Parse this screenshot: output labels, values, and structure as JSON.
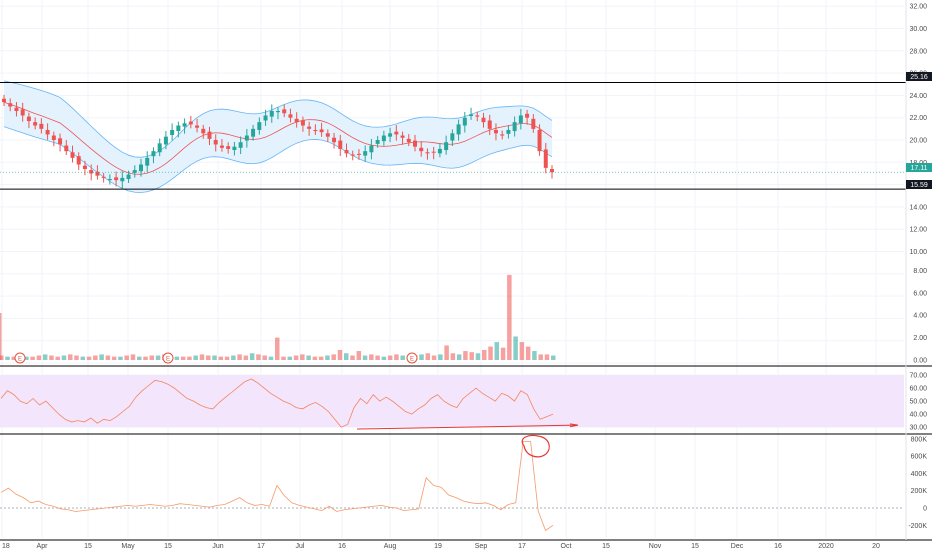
{
  "colors": {
    "up": "#26a69a",
    "down": "#ef5350",
    "band": "#64b5f6",
    "band_fill": "#e3f2fd",
    "rsi_line": "#f5845e",
    "rsi_bg": "#f3e5fb",
    "indicator_line": "#f59a6a",
    "annotation": "#e53935",
    "grid": "#f0f3fa",
    "axis_text": "#4a4a4a"
  },
  "price_tags": {
    "upper": "25.16",
    "last": "17.11",
    "lower": "15.59"
  },
  "chart_data": [
    {
      "type": "candlestick",
      "title": "",
      "x_axis_labels": [
        "18",
        "Apr",
        "15",
        "May",
        "15",
        "Jun",
        "17",
        "Jul",
        "16",
        "Aug",
        "19",
        "Sep",
        "17",
        "Oct",
        "15",
        "Nov",
        "15",
        "Dec",
        "16",
        "2020",
        "20"
      ],
      "y_ticks": [
        "32.00",
        "30.00",
        "28.00",
        "26.00",
        "24.00",
        "22.00",
        "20.00",
        "18.00",
        "16.00",
        "14.00",
        "12.00",
        "10.00",
        "8.00",
        "6.00",
        "4.00",
        "2.00",
        "0.00"
      ],
      "ylim": [
        -0.5,
        32.5
      ],
      "horizontal_lines": [
        25.16,
        15.59
      ],
      "bollinger_bands": true,
      "close": [
        23.4,
        23.0,
        22.6,
        22.2,
        21.7,
        21.3,
        21.0,
        20.5,
        20.0,
        19.6,
        19.0,
        18.4,
        17.8,
        17.4,
        17.0,
        16.8,
        16.6,
        16.5,
        16.4,
        16.6,
        16.9,
        17.3,
        17.8,
        18.4,
        19.0,
        19.7,
        20.3,
        20.9,
        21.3,
        21.5,
        21.4,
        21.1,
        20.6,
        20.1,
        19.6,
        19.3,
        19.2,
        19.4,
        19.8,
        20.4,
        21.0,
        21.6,
        22.2,
        22.6,
        22.6,
        22.4,
        22.0,
        21.6,
        21.3,
        21.0,
        20.8,
        20.7,
        20.3,
        19.8,
        19.2,
        18.8,
        18.6,
        18.7,
        19.0,
        19.5,
        20.0,
        20.4,
        20.6,
        20.5,
        20.2,
        19.8,
        19.4,
        19.0,
        18.8,
        18.9,
        19.2,
        19.8,
        20.6,
        21.4,
        22.0,
        22.3,
        22.1,
        21.6,
        21.0,
        20.6,
        20.4,
        20.9,
        21.6,
        22.2,
        22.0,
        21.0,
        19.0,
        17.5,
        17.11
      ],
      "events_marked": [
        "E",
        "E",
        "E"
      ]
    },
    {
      "type": "bar",
      "title": "",
      "note": "volume histogram",
      "y_ticks": [
        "8.00",
        "6.00",
        "4.00",
        "2.00",
        "0.00"
      ],
      "values": [
        0.4,
        0.3,
        0.3,
        0.4,
        0.3,
        0.3,
        0.4,
        0.5,
        0.4,
        0.3,
        0.4,
        0.5,
        0.4,
        0.3,
        0.3,
        0.4,
        0.5,
        0.4,
        0.3,
        0.3,
        0.4,
        0.5,
        0.3,
        0.3,
        0.4,
        0.4,
        0.5,
        0.4,
        0.3,
        0.3,
        0.3,
        0.4,
        0.5,
        0.4,
        0.4,
        0.3,
        0.3,
        0.4,
        0.5,
        0.4,
        0.6,
        0.5,
        0.4,
        0.3,
        2.0,
        0.3,
        0.3,
        0.4,
        0.5,
        0.4,
        0.3,
        0.3,
        0.4,
        0.5,
        0.9,
        0.6,
        0.4,
        0.8,
        0.4,
        0.5,
        0.4,
        0.3,
        0.4,
        0.5,
        0.4,
        0.3,
        0.4,
        0.5,
        0.6,
        0.4,
        0.5,
        1.3,
        0.6,
        0.5,
        0.8,
        0.7,
        0.6,
        0.9,
        1.2,
        1.6,
        1.1,
        7.6,
        2.1,
        1.6,
        1.2,
        0.8,
        0.5,
        0.5,
        0.4
      ],
      "ylim": [
        -0.2,
        8.6
      ]
    },
    {
      "type": "line",
      "title": "",
      "note": "RSI",
      "y_ticks": [
        "70.00",
        "60.00",
        "50.00",
        "40.00",
        "30.00"
      ],
      "ylim": [
        27,
        73
      ],
      "values": [
        52,
        58,
        55,
        50,
        48,
        52,
        47,
        50,
        45,
        40,
        36,
        34,
        35,
        34,
        37,
        33,
        36,
        35,
        38,
        42,
        46,
        53,
        58,
        62,
        66,
        65,
        63,
        60,
        56,
        52,
        50,
        47,
        45,
        44,
        49,
        53,
        57,
        61,
        65,
        67,
        64,
        60,
        56,
        53,
        50,
        48,
        45,
        44,
        47,
        49,
        46,
        42,
        36,
        30,
        32,
        45,
        52,
        48,
        55,
        50,
        53,
        50,
        46,
        42,
        40,
        44,
        47,
        52,
        55,
        50,
        47,
        45,
        52,
        56,
        60,
        56,
        53,
        50,
        56,
        54,
        50,
        58,
        55,
        44,
        36,
        38,
        40
      ],
      "trendline": "rising support line"
    },
    {
      "type": "line",
      "title": "",
      "note": "volume-based oscillator",
      "y_ticks": [
        "800K",
        "600K",
        "400K",
        "200K",
        "0",
        "-200K"
      ],
      "ylim": [
        -300000,
        870000
      ],
      "values": [
        180000,
        230000,
        160000,
        120000,
        60000,
        80000,
        40000,
        20000,
        -10000,
        -20000,
        -40000,
        -30000,
        -20000,
        -10000,
        0,
        10000,
        20000,
        30000,
        20000,
        30000,
        40000,
        30000,
        20000,
        30000,
        50000,
        40000,
        30000,
        20000,
        10000,
        30000,
        40000,
        80000,
        120000,
        60000,
        30000,
        40000,
        20000,
        260000,
        140000,
        60000,
        30000,
        10000,
        -10000,
        -30000,
        20000,
        -40000,
        -20000,
        -10000,
        0,
        10000,
        20000,
        30000,
        10000,
        0,
        -30000,
        -20000,
        -10000,
        350000,
        260000,
        240000,
        150000,
        120000,
        80000,
        60000,
        50000,
        60000,
        30000,
        -20000,
        40000,
        60000,
        770000,
        770000,
        -30000,
        -260000,
        -200000
      ],
      "annotation": "circled peak"
    }
  ]
}
